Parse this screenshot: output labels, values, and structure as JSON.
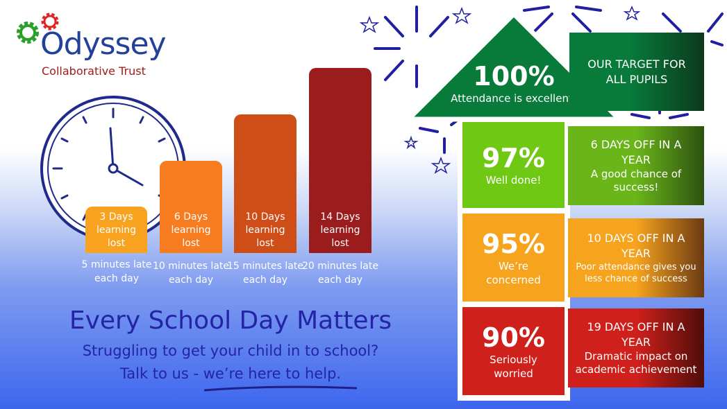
{
  "logo": {
    "name": "Odyssey",
    "subtitle": "Collaborative Trust",
    "colors": {
      "primary": "#23409b",
      "secondary": "#a01c1c",
      "gear1": "#2aa02a",
      "gear2": "#e02424"
    }
  },
  "bars": [
    {
      "label": "3 Days learning lost",
      "caption": "5 minutes late each day",
      "color": "#f9a21f"
    },
    {
      "label": "6 Days learning lost",
      "caption": "10 minutes late each day",
      "color": "#f77b1f"
    },
    {
      "label": "10 Days learning lost",
      "caption": "15 minutes late each day",
      "color": "#cf4e17"
    },
    {
      "label": "14 Days learning lost",
      "caption": "20 minutes late each day",
      "color": "#9b1c1c"
    }
  ],
  "headline": "Every School Day Matters",
  "subline1": "Struggling to get your child in to school?",
  "subline2": "Talk to us - we’re here to help.",
  "levels": [
    {
      "pct": "100%",
      "label": "Attendance is excellent!",
      "color": "#087a3a",
      "detail_head": "OUR TARGET FOR ALL PUPILS",
      "detail": ""
    },
    {
      "pct": "97%",
      "label": "Well done!",
      "color": "#6fc914",
      "detail_head": "6 DAYS OFF IN A YEAR",
      "detail": "A good chance of success!"
    },
    {
      "pct": "95%",
      "label": "We’re concerned",
      "color": "#f6a31e",
      "detail_head": "10 DAYS OFF IN A YEAR",
      "detail": "Poor attendance gives you less chance of success"
    },
    {
      "pct": "90%",
      "label": "Seriously worried",
      "color": "#d0201b",
      "detail_head": "19 DAYS OFF IN A YEAR",
      "detail": "Dramatic impact on academic achievement"
    }
  ]
}
